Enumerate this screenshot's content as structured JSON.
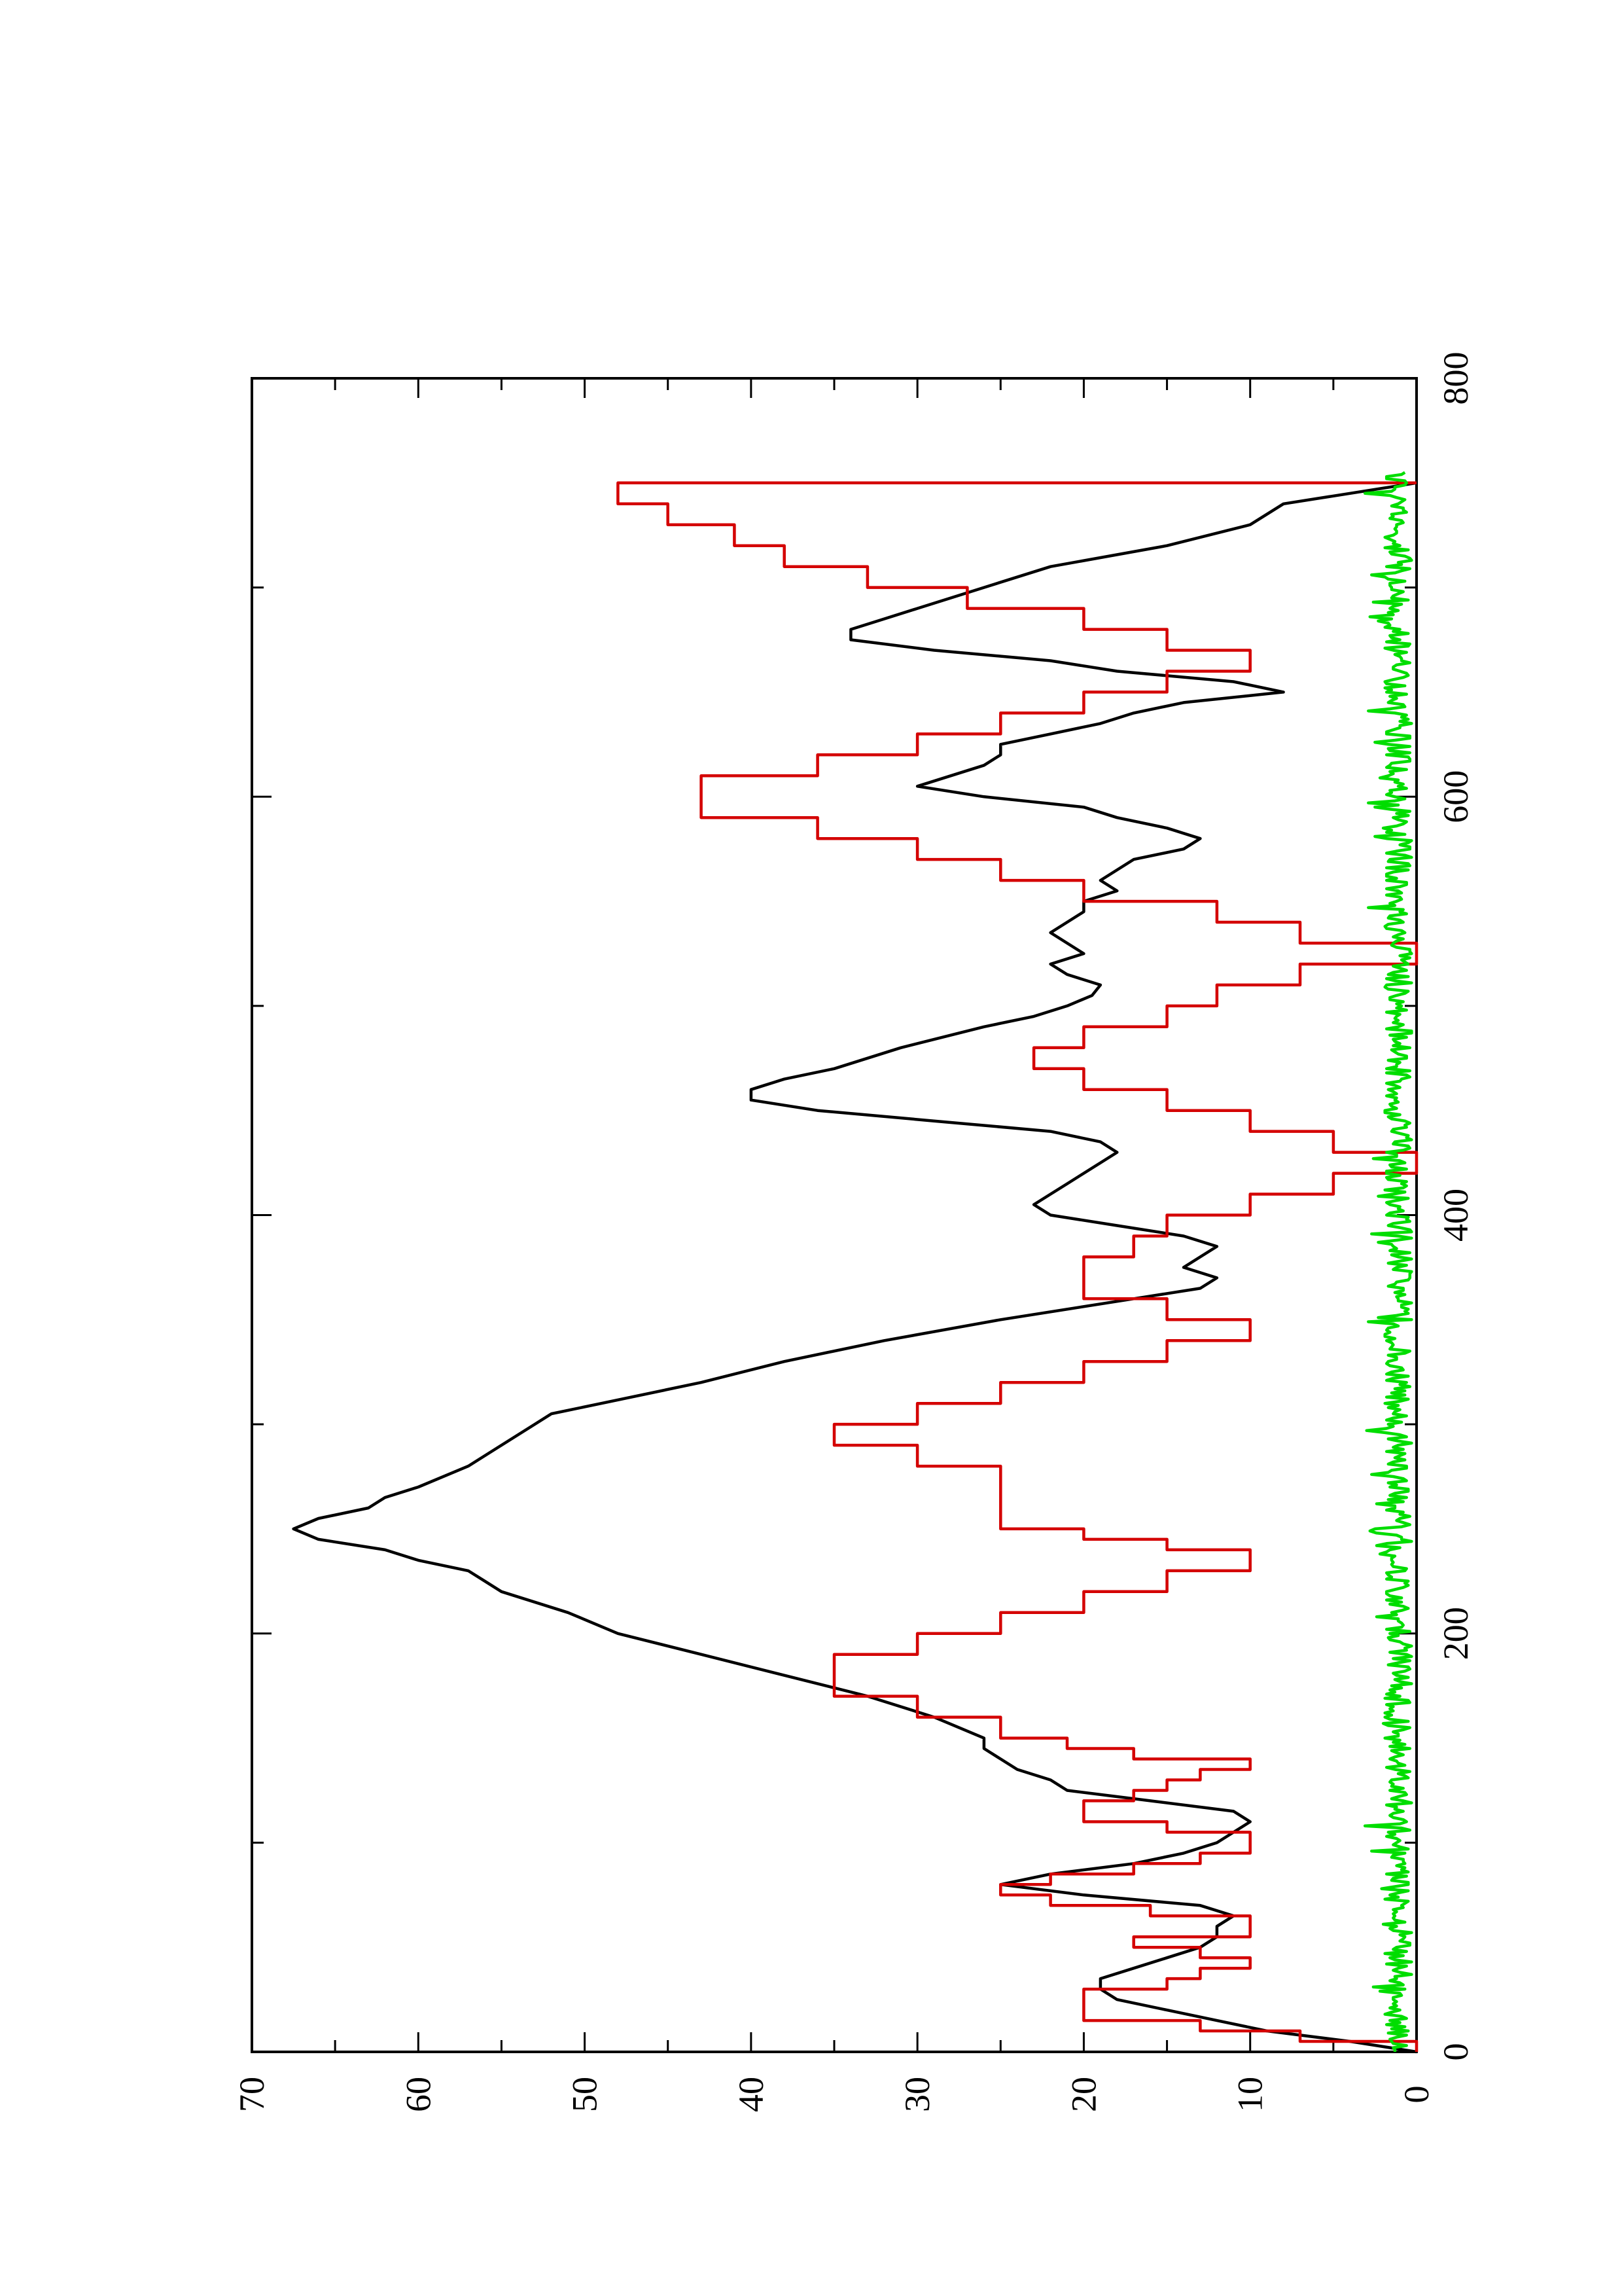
{
  "chart_data": {
    "type": "line",
    "title": "",
    "xlabel": "",
    "ylabel": "",
    "orientation": "rotated-90-ccw",
    "xlim": [
      0,
      800
    ],
    "ylim": [
      0,
      70
    ],
    "x_ticks": [
      0,
      200,
      400,
      600,
      800
    ],
    "y_ticks": [
      0,
      10,
      20,
      30,
      40,
      50,
      60,
      70
    ],
    "x_minor_step": 100,
    "y_minor_step": 5,
    "grid": false,
    "legend": "none",
    "series": [
      {
        "color": "#000000",
        "style": "line",
        "x": [
          0,
          5,
          10,
          15,
          20,
          25,
          30,
          35,
          40,
          45,
          50,
          55,
          60,
          65,
          70,
          75,
          80,
          85,
          90,
          95,
          100,
          105,
          110,
          115,
          120,
          125,
          130,
          135,
          140,
          145,
          150,
          160,
          170,
          180,
          190,
          200,
          210,
          220,
          225,
          230,
          235,
          240,
          245,
          250,
          255,
          260,
          265,
          270,
          280,
          290,
          300,
          305,
          310,
          320,
          330,
          340,
          350,
          360,
          365,
          370,
          375,
          380,
          385,
          390,
          395,
          400,
          405,
          410,
          415,
          420,
          425,
          430,
          435,
          440,
          445,
          450,
          455,
          460,
          465,
          470,
          480,
          490,
          495,
          500,
          505,
          510,
          515,
          520,
          525,
          530,
          535,
          540,
          545,
          550,
          555,
          560,
          565,
          570,
          575,
          580,
          585,
          590,
          595,
          600,
          605,
          610,
          615,
          620,
          625,
          630,
          635,
          640,
          645,
          650,
          655,
          660,
          665,
          670,
          675,
          680,
          685,
          690,
          695,
          700,
          710,
          720,
          730,
          740,
          745,
          750
        ],
        "y": [
          0,
          4,
          9,
          12,
          15,
          18,
          19,
          19,
          17,
          15,
          13,
          12,
          12,
          11,
          13,
          20,
          25,
          22,
          17,
          14,
          12,
          11,
          10,
          11,
          16,
          21,
          22,
          24,
          25,
          26,
          26,
          29,
          33,
          38,
          43,
          48,
          51,
          55,
          56,
          57,
          60,
          62,
          66,
          67.5,
          66,
          63,
          62,
          60,
          57,
          55,
          53,
          52,
          49,
          43,
          38,
          32,
          25,
          17,
          13,
          12,
          14,
          13,
          12,
          14,
          18,
          22,
          23,
          22,
          21,
          20,
          19,
          18,
          19,
          22,
          29,
          36,
          40,
          40,
          38,
          35,
          31,
          26,
          23,
          21,
          19.5,
          19,
          21,
          22,
          20,
          21,
          22,
          21,
          20,
          20,
          18,
          19,
          18,
          17,
          14,
          13,
          15,
          18,
          20,
          26,
          30,
          28,
          26,
          25,
          25,
          22,
          19,
          17,
          14,
          8,
          11,
          18,
          22,
          29,
          34,
          34,
          32,
          30,
          28,
          26,
          22,
          15,
          10,
          8,
          4,
          0
        ]
      },
      {
        "color": "#d40000",
        "style": "step",
        "x": [
          0,
          5,
          10,
          15,
          20,
          25,
          30,
          35,
          40,
          45,
          50,
          55,
          60,
          65,
          70,
          75,
          80,
          85,
          90,
          95,
          100,
          105,
          110,
          115,
          120,
          125,
          130,
          135,
          140,
          145,
          150,
          160,
          170,
          180,
          190,
          200,
          210,
          220,
          230,
          240,
          245,
          250,
          260,
          270,
          280,
          290,
          300,
          310,
          320,
          330,
          340,
          350,
          360,
          370,
          380,
          390,
          400,
          410,
          420,
          430,
          440,
          450,
          460,
          470,
          480,
          490,
          500,
          510,
          520,
          530,
          540,
          550,
          560,
          570,
          580,
          590,
          600,
          610,
          620,
          630,
          640,
          650,
          660,
          670,
          680,
          690,
          700,
          710,
          720,
          730,
          740,
          750
        ],
        "y": [
          0,
          7,
          13,
          20,
          20,
          20,
          15,
          13,
          10,
          13,
          17,
          10,
          10,
          16,
          22,
          25,
          22,
          17,
          13,
          10,
          10,
          15,
          20,
          20,
          17,
          15,
          13,
          10,
          17,
          21,
          25,
          30,
          35,
          35,
          30,
          25,
          20,
          15,
          10,
          15,
          20,
          25,
          25,
          25,
          30,
          35,
          30,
          25,
          20,
          15,
          10,
          15,
          20,
          20,
          17,
          15,
          10,
          5,
          0,
          5,
          10,
          15,
          20,
          23,
          20,
          15,
          12,
          7,
          0,
          7,
          12,
          20,
          25,
          30,
          36,
          43,
          43,
          36,
          30,
          25,
          20,
          15,
          10,
          15,
          20,
          27,
          33,
          38,
          41,
          45,
          48,
          0
        ]
      },
      {
        "color": "#00dd00",
        "style": "line",
        "x": [],
        "y": [],
        "note": ""
      }
    ]
  }
}
